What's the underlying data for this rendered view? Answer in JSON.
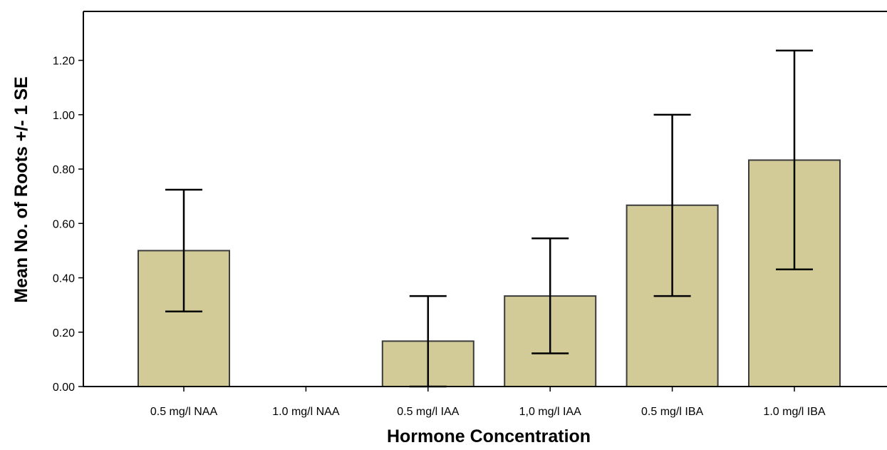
{
  "chart_data": {
    "type": "bar",
    "title": "",
    "xlabel": "Hormone Concentration",
    "ylabel": "Mean No. of Roots +/- 1 SE",
    "ylim": [
      0,
      1.38
    ],
    "yticks": [
      "0.00",
      "0.20",
      "0.40",
      "0.60",
      "0.80",
      "1.00",
      "1.20"
    ],
    "categories": [
      "0.5 mg/l NAA",
      "1.0 mg/l NAA",
      "0.5 mg/l IAA",
      "1,0 mg/l IAA",
      "0.5 mg/l IBA",
      "1.0 mg/l IBA"
    ],
    "values": [
      0.5,
      0.0,
      0.167,
      0.333,
      0.667,
      0.833
    ],
    "error_low": [
      0.276,
      0.0,
      0.0,
      0.122,
      0.333,
      0.431
    ],
    "error_high": [
      0.724,
      0.0,
      0.333,
      0.545,
      1.0,
      1.236
    ],
    "grid": false,
    "legend": "none",
    "bar_color": "#d2cb98",
    "edge_color": "#3c3c3c"
  }
}
